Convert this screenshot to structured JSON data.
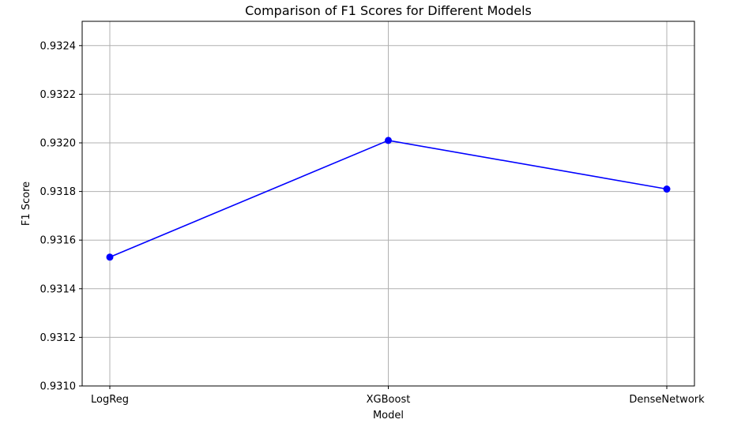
{
  "chart_data": {
    "type": "line",
    "title": "Comparison of F1 Scores for Different Models",
    "xlabel": "Model",
    "ylabel": "F1 Score",
    "categories": [
      "LogReg",
      "XGBoost",
      "DenseNetwork"
    ],
    "series": [
      {
        "values": [
          0.93153,
          0.93201,
          0.93181
        ],
        "color": "#0000ff",
        "marker": "circle"
      }
    ],
    "ylim": [
      0.931,
      0.9325
    ],
    "yticks": [
      "0.9310",
      "0.9312",
      "0.9314",
      "0.9316",
      "0.9318",
      "0.9320",
      "0.9322",
      "0.9324"
    ],
    "grid": true,
    "legend": "none"
  }
}
